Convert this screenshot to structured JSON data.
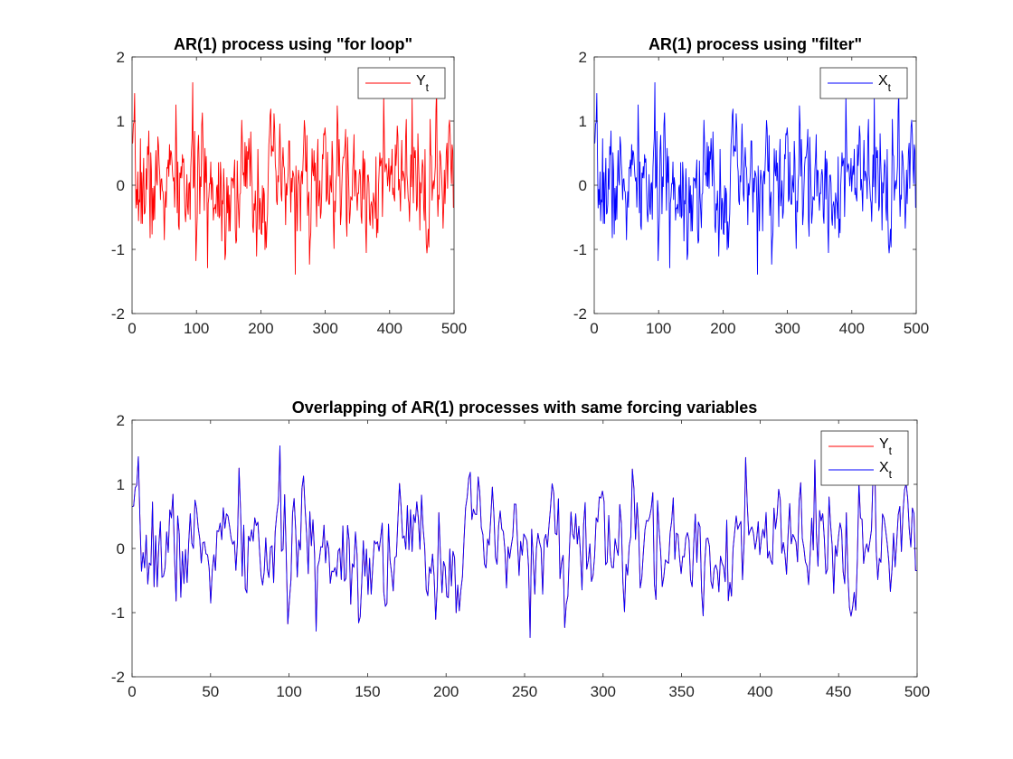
{
  "figure": {
    "background": "#ffffff"
  },
  "chart_data": [
    {
      "type": "line",
      "title": "AR(1) process using \"for loop\"",
      "xlabel": "",
      "ylabel": "",
      "xlim": [
        0,
        500
      ],
      "ylim": [
        -2,
        2
      ],
      "xticks": [
        0,
        100,
        200,
        300,
        400,
        500
      ],
      "yticks": [
        -2,
        -1,
        0,
        1,
        2
      ],
      "grid": false,
      "legend": {
        "placement": "top-right"
      },
      "series": [
        {
          "name": "Y",
          "subscript": "t",
          "color": "#ff0000",
          "seed": 7,
          "points": 500
        }
      ]
    },
    {
      "type": "line",
      "title": "AR(1) process using \"filter\"",
      "xlabel": "",
      "ylabel": "",
      "xlim": [
        0,
        500
      ],
      "ylim": [
        -2,
        2
      ],
      "xticks": [
        0,
        100,
        200,
        300,
        400,
        500
      ],
      "yticks": [
        -2,
        -1,
        0,
        1,
        2
      ],
      "grid": false,
      "legend": {
        "placement": "top-right"
      },
      "series": [
        {
          "name": "X",
          "subscript": "t",
          "color": "#0000ff",
          "seed": 7,
          "points": 500
        }
      ]
    },
    {
      "type": "line",
      "title": "Overlapping of AR(1) processes with same forcing variables",
      "xlabel": "",
      "ylabel": "",
      "xlim": [
        0,
        500
      ],
      "ylim": [
        -2,
        2
      ],
      "xticks": [
        0,
        50,
        100,
        150,
        200,
        250,
        300,
        350,
        400,
        450,
        500
      ],
      "yticks": [
        -2,
        -1,
        0,
        1,
        2
      ],
      "grid": false,
      "legend": {
        "placement": "top-right"
      },
      "series": [
        {
          "name": "Y",
          "subscript": "t",
          "color": "#ff0000",
          "seed": 7,
          "points": 500
        },
        {
          "name": "X",
          "subscript": "t",
          "color": "#0000ff",
          "seed": 7,
          "points": 500
        }
      ]
    }
  ]
}
